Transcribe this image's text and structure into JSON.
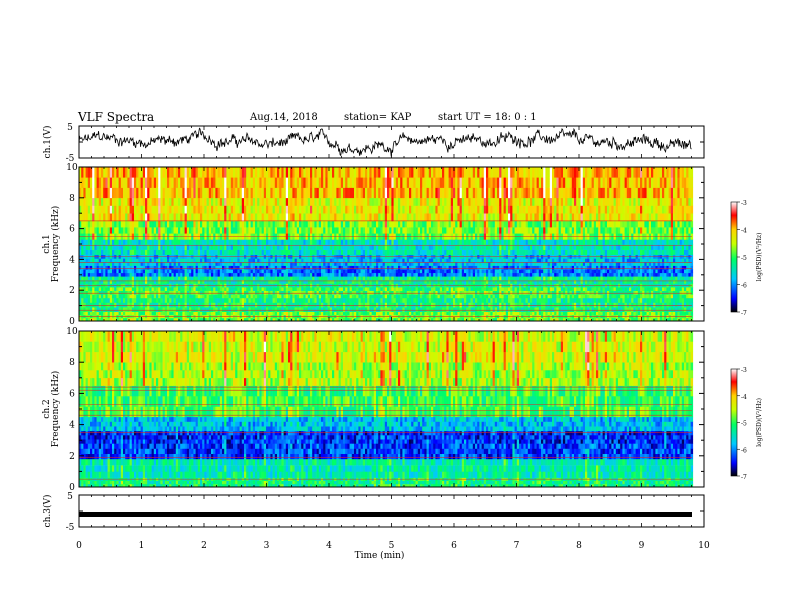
{
  "header": {
    "title": "VLF Spectra",
    "date": "Aug.14, 2018",
    "station": "station= KAP",
    "start": "start  UT =   18: 0  : 1"
  },
  "colors": {
    "colormap": [
      "#000000",
      "#0000ff",
      "#00c8ff",
      "#00ff64",
      "#c8ff00",
      "#ffd200",
      "#ff0000",
      "#ffffff"
    ],
    "trace": "#000000"
  },
  "chart_data": [
    {
      "type": "line",
      "name": "ch1-waveform",
      "ylabel": "ch.1(V)",
      "ylim": [
        -5,
        5
      ],
      "yticks": [
        "5",
        "-5"
      ],
      "xlim": [
        0,
        10
      ],
      "grid": false
    },
    {
      "type": "heatmap",
      "name": "ch1-spectrogram",
      "ylabel_top": "ch.1",
      "ylabel": "Frequency (kHz)",
      "ylim": [
        0,
        10
      ],
      "yticks": [
        "0",
        "2",
        "4",
        "6",
        "8",
        "10"
      ],
      "xlim": [
        0,
        9.85
      ],
      "colorbar": {
        "label": "log(PSD)(V²/Hz)",
        "range": [
          -7,
          -3
        ],
        "ticks": [
          "-3",
          "-4",
          "-5",
          "-6",
          "-7"
        ]
      },
      "band_levels": [
        {
          "f": [
            0,
            0.6
          ],
          "level": -4.8
        },
        {
          "f": [
            0.6,
            1.5
          ],
          "level": -5.2
        },
        {
          "f": [
            1.5,
            2.2
          ],
          "level": -5.0
        },
        {
          "f": [
            2.2,
            2.9
          ],
          "level": -5.3
        },
        {
          "f": [
            2.9,
            3.6
          ],
          "level": -6.1
        },
        {
          "f": [
            3.6,
            4.3
          ],
          "level": -5.8
        },
        {
          "f": [
            4.3,
            5.3
          ],
          "level": -5.5
        },
        {
          "f": [
            5.3,
            6.5
          ],
          "level": -4.8
        },
        {
          "f": [
            6.5,
            8.0
          ],
          "level": -4.3
        },
        {
          "f": [
            8.0,
            10.0
          ],
          "level": -4.0
        }
      ],
      "hum_lines_khz": [
        0.3,
        0.7,
        1.0,
        1.8,
        2.3,
        2.6,
        3.4,
        3.8,
        4.2,
        4.9,
        5.5,
        6.5
      ]
    },
    {
      "type": "heatmap",
      "name": "ch2-spectrogram",
      "ylabel_top": "ch.2",
      "ylabel": "Frequency (kHz)",
      "ylim": [
        0,
        10
      ],
      "yticks": [
        "0",
        "2",
        "4",
        "6",
        "8",
        "10"
      ],
      "xlim": [
        0,
        9.85
      ],
      "colorbar": {
        "label": "log(PSD)(V²/Hz)",
        "range": [
          -7,
          -3
        ],
        "ticks": [
          "-3",
          "-4",
          "-5",
          "-6",
          "-7"
        ]
      },
      "band_levels": [
        {
          "f": [
            0,
            0.6
          ],
          "level": -5.2
        },
        {
          "f": [
            0.6,
            1.8
          ],
          "level": -5.4
        },
        {
          "f": [
            1.8,
            2.8
          ],
          "level": -6.3
        },
        {
          "f": [
            2.8,
            3.6
          ],
          "level": -6.4
        },
        {
          "f": [
            3.6,
            4.5
          ],
          "level": -5.8
        },
        {
          "f": [
            4.5,
            6.5
          ],
          "level": -5.0
        },
        {
          "f": [
            6.5,
            8.0
          ],
          "level": -4.6
        },
        {
          "f": [
            8.0,
            10.0
          ],
          "level": -4.4
        }
      ],
      "hum_lines_khz": [
        0.5,
        1.9,
        3.5,
        4.6,
        4.9,
        5.3,
        6.2,
        6.4
      ]
    },
    {
      "type": "line",
      "name": "ch3-waveform",
      "ylabel": "ch.3(V)",
      "ylim": [
        -5,
        5
      ],
      "yticks": [
        "5",
        "-5"
      ],
      "constant_value": -1.1,
      "xlim": [
        0,
        10
      ],
      "xticks": [
        "0",
        "1",
        "2",
        "3",
        "4",
        "5",
        "6",
        "7",
        "8",
        "9",
        "10"
      ],
      "xlabel": "Time (min)",
      "grid": false
    }
  ]
}
